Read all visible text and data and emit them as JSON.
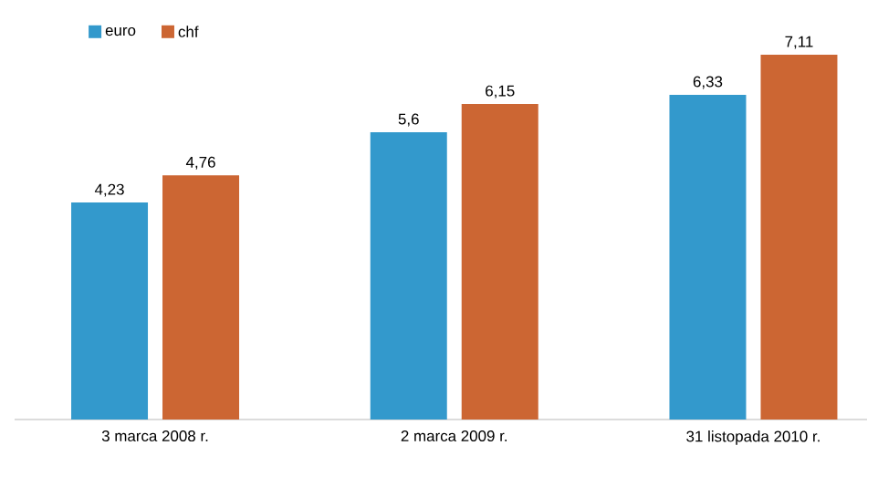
{
  "chart_data": {
    "type": "bar",
    "categories": [
      "3 marca 2008 r.",
      "2 marca 2009 r.",
      "31 listopada 2010 r."
    ],
    "series": [
      {
        "name": "euro",
        "color": "#3399cc",
        "values": [
          4.23,
          5.6,
          6.33
        ],
        "value_labels": [
          "4,23",
          "5,6",
          "6,33"
        ]
      },
      {
        "name": "chf",
        "color": "#cc6633",
        "values": [
          4.76,
          6.15,
          7.11
        ],
        "value_labels": [
          "4,76",
          "6,15",
          "7,11"
        ]
      }
    ],
    "legend": "top left"
  }
}
